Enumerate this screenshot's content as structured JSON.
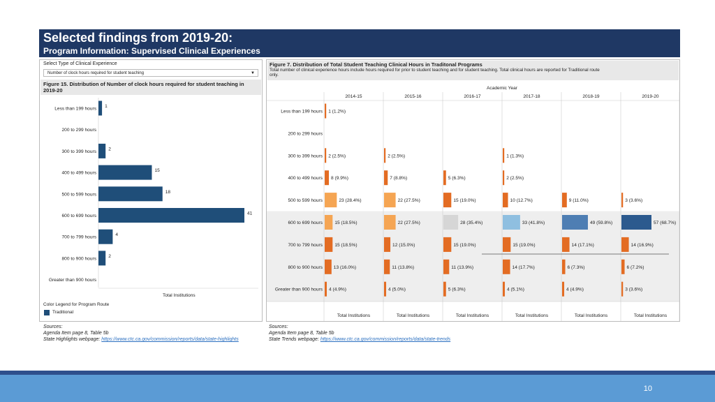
{
  "header": {
    "title": "Selected findings from 2019-20:",
    "subtitle": "Program Information: Supervised Clinical Experiences"
  },
  "left": {
    "select_label": "Select Type of Clinical Experience",
    "select_value": "Number of clock hours required for student teaching",
    "figure_title_1": "Figure 15. Distribution of Number of clock hours required for student teaching in",
    "figure_title_2": "2019-20",
    "axis_label": "Total Institutions",
    "legend_title": "Color Legend for Program Route",
    "legend_item": "Traditional"
  },
  "right": {
    "figure_title": "Figure 7. Distribution of Total Student Teaching Clinical Hours in Traditonal Programs",
    "desc_1": "Total number of clinical experience hours include hours required for prior to student teaching and for student teaching. Total clinical hours are reported for Traditional route",
    "desc_2": "only.",
    "header": "Academic Year",
    "axis_label": "Total Institutions"
  },
  "sources_left": {
    "label": "Sources:",
    "line1": "Agenda Item page 8, Table 5b",
    "line2_prefix": "State Highlights webpage: ",
    "line2_link": "https://www.ctc.ca.gov/commission/reports/data/state-highlights"
  },
  "sources_right": {
    "label": "Sources:",
    "line1": "Agenda Item page 8, Table 5b",
    "line2_prefix": "State Trends webpage: ",
    "line2_link": "https://www.ctc.ca.gov/commission/reports/data/state-trends"
  },
  "page_number": "10",
  "chart_data": [
    {
      "type": "bar",
      "title": "Figure 15. Distribution of Number of clock hours required for student teaching in 2019-20",
      "xlabel": "Total Institutions",
      "categories": [
        "Less than 199 hours",
        "200 to 299 hours",
        "300 to 399 hours",
        "400 to 499 hours",
        "500 to 599 hours",
        "600 to 699 hours",
        "700 to 799 hours",
        "800 to 900 hours",
        "Greater than 900 hours"
      ],
      "values": [
        1,
        null,
        2,
        15,
        18,
        41,
        4,
        2,
        null
      ],
      "xlim": [
        0,
        41
      ],
      "color": "#1f4e79"
    },
    {
      "type": "bar",
      "title": "Figure 7. Distribution of Total Student Teaching Clinical Hours in Traditonal Programs",
      "xlabel": "Total Institutions",
      "header": "Academic Year",
      "years": [
        "2014-15",
        "2015-16",
        "2016-17",
        "2017-18",
        "2018-19",
        "2019-20"
      ],
      "categories": [
        "Less than 199 hours",
        "200 to 299 hours",
        "300 to 399 hours",
        "400 to 499 hours",
        "500 to 599 hours",
        "600 to 699 hours",
        "700 to 799 hours",
        "800 to 900 hours",
        "Greater than 900 hours"
      ],
      "values": [
        [
          1,
          null,
          2,
          8,
          23,
          15,
          15,
          13,
          4
        ],
        [
          null,
          null,
          2,
          7,
          22,
          22,
          12,
          11,
          4
        ],
        [
          null,
          null,
          null,
          5,
          15,
          28,
          15,
          11,
          5
        ],
        [
          null,
          null,
          1,
          2,
          10,
          33,
          15,
          14,
          4
        ],
        [
          null,
          null,
          null,
          null,
          9,
          49,
          14,
          6,
          4
        ],
        [
          null,
          null,
          null,
          null,
          3,
          57,
          14,
          6,
          3
        ]
      ],
      "labels": [
        [
          "1 (1.2%)",
          null,
          "2 (2.5%)",
          "8 (9.9%)",
          "23 (28.4%)",
          "15 (18.5%)",
          "15 (18.5%)",
          "13 (16.0%)",
          "4 (4.9%)"
        ],
        [
          null,
          null,
          "2 (2.5%)",
          "7 (8.8%)",
          "22 (27.5%)",
          "22 (27.5%)",
          "12 (15.0%)",
          "11 (13.8%)",
          "4 (5.0%)"
        ],
        [
          null,
          null,
          null,
          "5 (6.3%)",
          "15 (19.0%)",
          "28 (35.4%)",
          "15 (19.0%)",
          "11 (13.9%)",
          "5 (6.3%)"
        ],
        [
          null,
          null,
          "1 (1.3%)",
          "2 (2.5%)",
          "10 (12.7%)",
          "33 (41.8%)",
          "15 (19.0%)",
          "14 (17.7%)",
          "4 (5.1%)"
        ],
        [
          null,
          null,
          null,
          null,
          "9 (11.0%)",
          "49 (59.8%)",
          "14 (17.1%)",
          "6 (7.3%)",
          "4 (4.9%)"
        ],
        [
          null,
          null,
          null,
          null,
          "3 (3.6%)",
          "57 (68.7%)",
          "14 (16.9%)",
          "6 (7.2%)",
          "3 (3.6%)"
        ]
      ],
      "colors": {
        "default": "#e36c23",
        "highlight": [
          "#f5a553",
          "#f5a553",
          "#d6d6d6",
          "#8fbfe0",
          "#4e7eb3",
          "#2c5a8e"
        ]
      },
      "highlight_row": "600 to 699 hours"
    }
  ]
}
